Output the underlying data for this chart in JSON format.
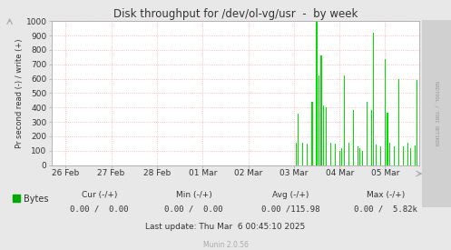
{
  "title": "Disk throughput for /dev/ol-vg/usr  -  by week",
  "ylabel": "Pr second read (-) / write (+)",
  "background_color": "#e8e8e8",
  "plot_bg_color": "#ffffff",
  "watermark_bg_color": "#d0d0d0",
  "grid_color": "#ffaaaa",
  "ylim": [
    0,
    1000
  ],
  "yticks": [
    0,
    100,
    200,
    300,
    400,
    500,
    600,
    700,
    800,
    900,
    1000
  ],
  "fill_color": "#00e000",
  "watermark": "RRDTOOL / TOBI OETIKER",
  "munin_text": "Munin 2.0.56",
  "legend_label": "Bytes",
  "legend_color": "#00aa00",
  "cur_label": "Cur (-/+)",
  "cur_val": "0.00 /  0.00",
  "min_label": "Min (-/+)",
  "min_val": "0.00 /  0.00",
  "avg_label": "Avg (-/+)",
  "avg_val": "0.00 /115.98",
  "max_label": "Max (-/+)",
  "max_val": "0.00 /  5.82k",
  "last_update": "Last update: Thu Mar  6 00:45:10 2025",
  "x_tick_labels": [
    "26 Feb",
    "27 Feb",
    "28 Feb",
    "01 Mar",
    "02 Mar",
    "03 Mar",
    "04 Mar",
    "05 Mar"
  ],
  "x_tick_positions": [
    0,
    1,
    2,
    3,
    4,
    5,
    6,
    7
  ],
  "spike_positions": [
    5.05,
    5.1,
    5.15,
    5.2,
    5.25,
    5.3,
    5.35,
    5.4,
    5.45,
    5.5,
    5.55,
    5.6,
    5.65,
    5.7,
    5.75,
    5.8,
    5.85,
    5.9,
    5.95,
    6.0,
    6.05,
    6.1,
    6.15,
    6.2,
    6.25,
    6.3,
    6.35,
    6.4,
    6.45,
    6.5,
    6.55,
    6.6,
    6.65,
    6.7,
    6.75,
    6.8,
    6.85,
    6.9,
    6.95,
    7.0,
    7.05,
    7.1,
    7.15,
    7.2,
    7.25,
    7.3,
    7.35,
    7.4,
    7.45,
    7.5,
    7.55,
    7.6,
    7.65,
    7.7,
    7.75,
    7.8,
    7.85,
    7.9
  ],
  "spike_heights": [
    155,
    360,
    0,
    155,
    0,
    150,
    0,
    440,
    0,
    1020,
    625,
    760,
    415,
    400,
    0,
    155,
    0,
    150,
    0,
    100,
    115,
    625,
    0,
    155,
    0,
    385,
    0,
    130,
    115,
    100,
    0,
    440,
    0,
    380,
    920,
    145,
    0,
    130,
    0,
    735,
    365,
    155,
    0,
    130,
    0,
    600,
    0,
    130,
    0,
    155,
    120,
    0,
    135,
    590,
    0,
    125,
    0,
    130
  ]
}
